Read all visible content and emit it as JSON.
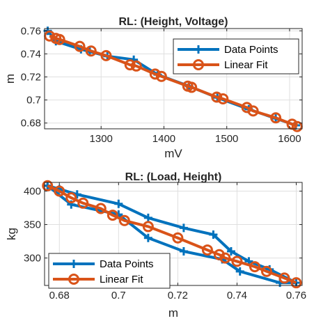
{
  "colors": {
    "data_points": "#0072BD",
    "linear_fit": "#D95319",
    "axis": "#262626",
    "grid": "#dfdfdf"
  },
  "chart_data": [
    {
      "type": "line",
      "title": "RL: (Height, Voltage)",
      "xlabel": "mV",
      "ylabel": "m",
      "xlim": [
        1210,
        1620
      ],
      "ylim": [
        0.675,
        0.762
      ],
      "xticks": [
        1300,
        1400,
        1500,
        1600
      ],
      "xtick_labels": [
        "1300",
        "1400",
        "1500",
        "1600"
      ],
      "yticks": [
        0.68,
        0.7,
        0.72,
        0.74,
        0.76
      ],
      "ytick_labels": [
        "0.68",
        "0.7",
        "0.72",
        "0.74",
        "0.76"
      ],
      "grid": true,
      "legend_position": "top-right",
      "series": [
        {
          "name": "Data Points",
          "marker": "plus",
          "color": "#0072BD",
          "x": [
            1215,
            1228,
            1268,
            1282,
            1310,
            1352,
            1390,
            1440,
            1485,
            1535,
            1578,
            1610
          ],
          "y": [
            0.76,
            0.751,
            0.744,
            0.742,
            0.738,
            0.735,
            0.722,
            0.712,
            0.702,
            0.692,
            0.684,
            0.678
          ]
        },
        {
          "name": "Linear Fit",
          "marker": "circle",
          "color": "#D95319",
          "x": [
            1218,
            1228,
            1234,
            1266,
            1284,
            1308,
            1346,
            1356,
            1386,
            1396,
            1438,
            1444,
            1484,
            1494,
            1532,
            1542,
            1578,
            1604,
            1612
          ],
          "y": [
            0.7555,
            0.7535,
            0.7525,
            0.7465,
            0.7425,
            0.7385,
            0.7305,
            0.7295,
            0.7225,
            0.7205,
            0.712,
            0.711,
            0.7025,
            0.701,
            0.6935,
            0.6905,
            0.6845,
            0.679,
            0.677
          ]
        }
      ]
    },
    {
      "type": "line",
      "title": "RL: (Load, Height)",
      "xlabel": "m",
      "ylabel": "kg",
      "xlim": [
        0.675,
        0.762
      ],
      "ylim": [
        259,
        413
      ],
      "xticks": [
        0.68,
        0.7,
        0.72,
        0.74,
        0.76
      ],
      "xtick_labels": [
        "0.68",
        "0.7",
        "0.72",
        "0.74",
        "0.76"
      ],
      "yticks": [
        300,
        350,
        400
      ],
      "ytick_labels": [
        "300",
        "350",
        "400"
      ],
      "grid": true,
      "legend_position": "bottom-left",
      "series": [
        {
          "name": "Data Points",
          "marker": "plus",
          "color": "#0072BD",
          "x": [
            0.676,
            0.68,
            0.686,
            0.7,
            0.71,
            0.722,
            0.732,
            0.738,
            0.744,
            0.751,
            0.76,
            0.7545,
            0.741,
            0.735,
            0.722,
            0.71,
            0.7,
            0.684,
            0.676
          ],
          "y": [
            408,
            403,
            395,
            381,
            360,
            345,
            335,
            310,
            295,
            283,
            263,
            263,
            280,
            298,
            310,
            330,
            365,
            380,
            408
          ]
        },
        {
          "name": "Linear Fit",
          "marker": "circle",
          "color": "#D95319",
          "x": [
            0.676,
            0.68,
            0.684,
            0.688,
            0.694,
            0.698,
            0.702,
            0.71,
            0.72,
            0.73,
            0.734,
            0.736,
            0.74,
            0.746,
            0.75,
            0.756,
            0.76
          ],
          "y": [
            408,
            400,
            390,
            382,
            374,
            364,
            356,
            347,
            330,
            312,
            305,
            300,
            295,
            287,
            280,
            270,
            263
          ]
        }
      ]
    }
  ]
}
